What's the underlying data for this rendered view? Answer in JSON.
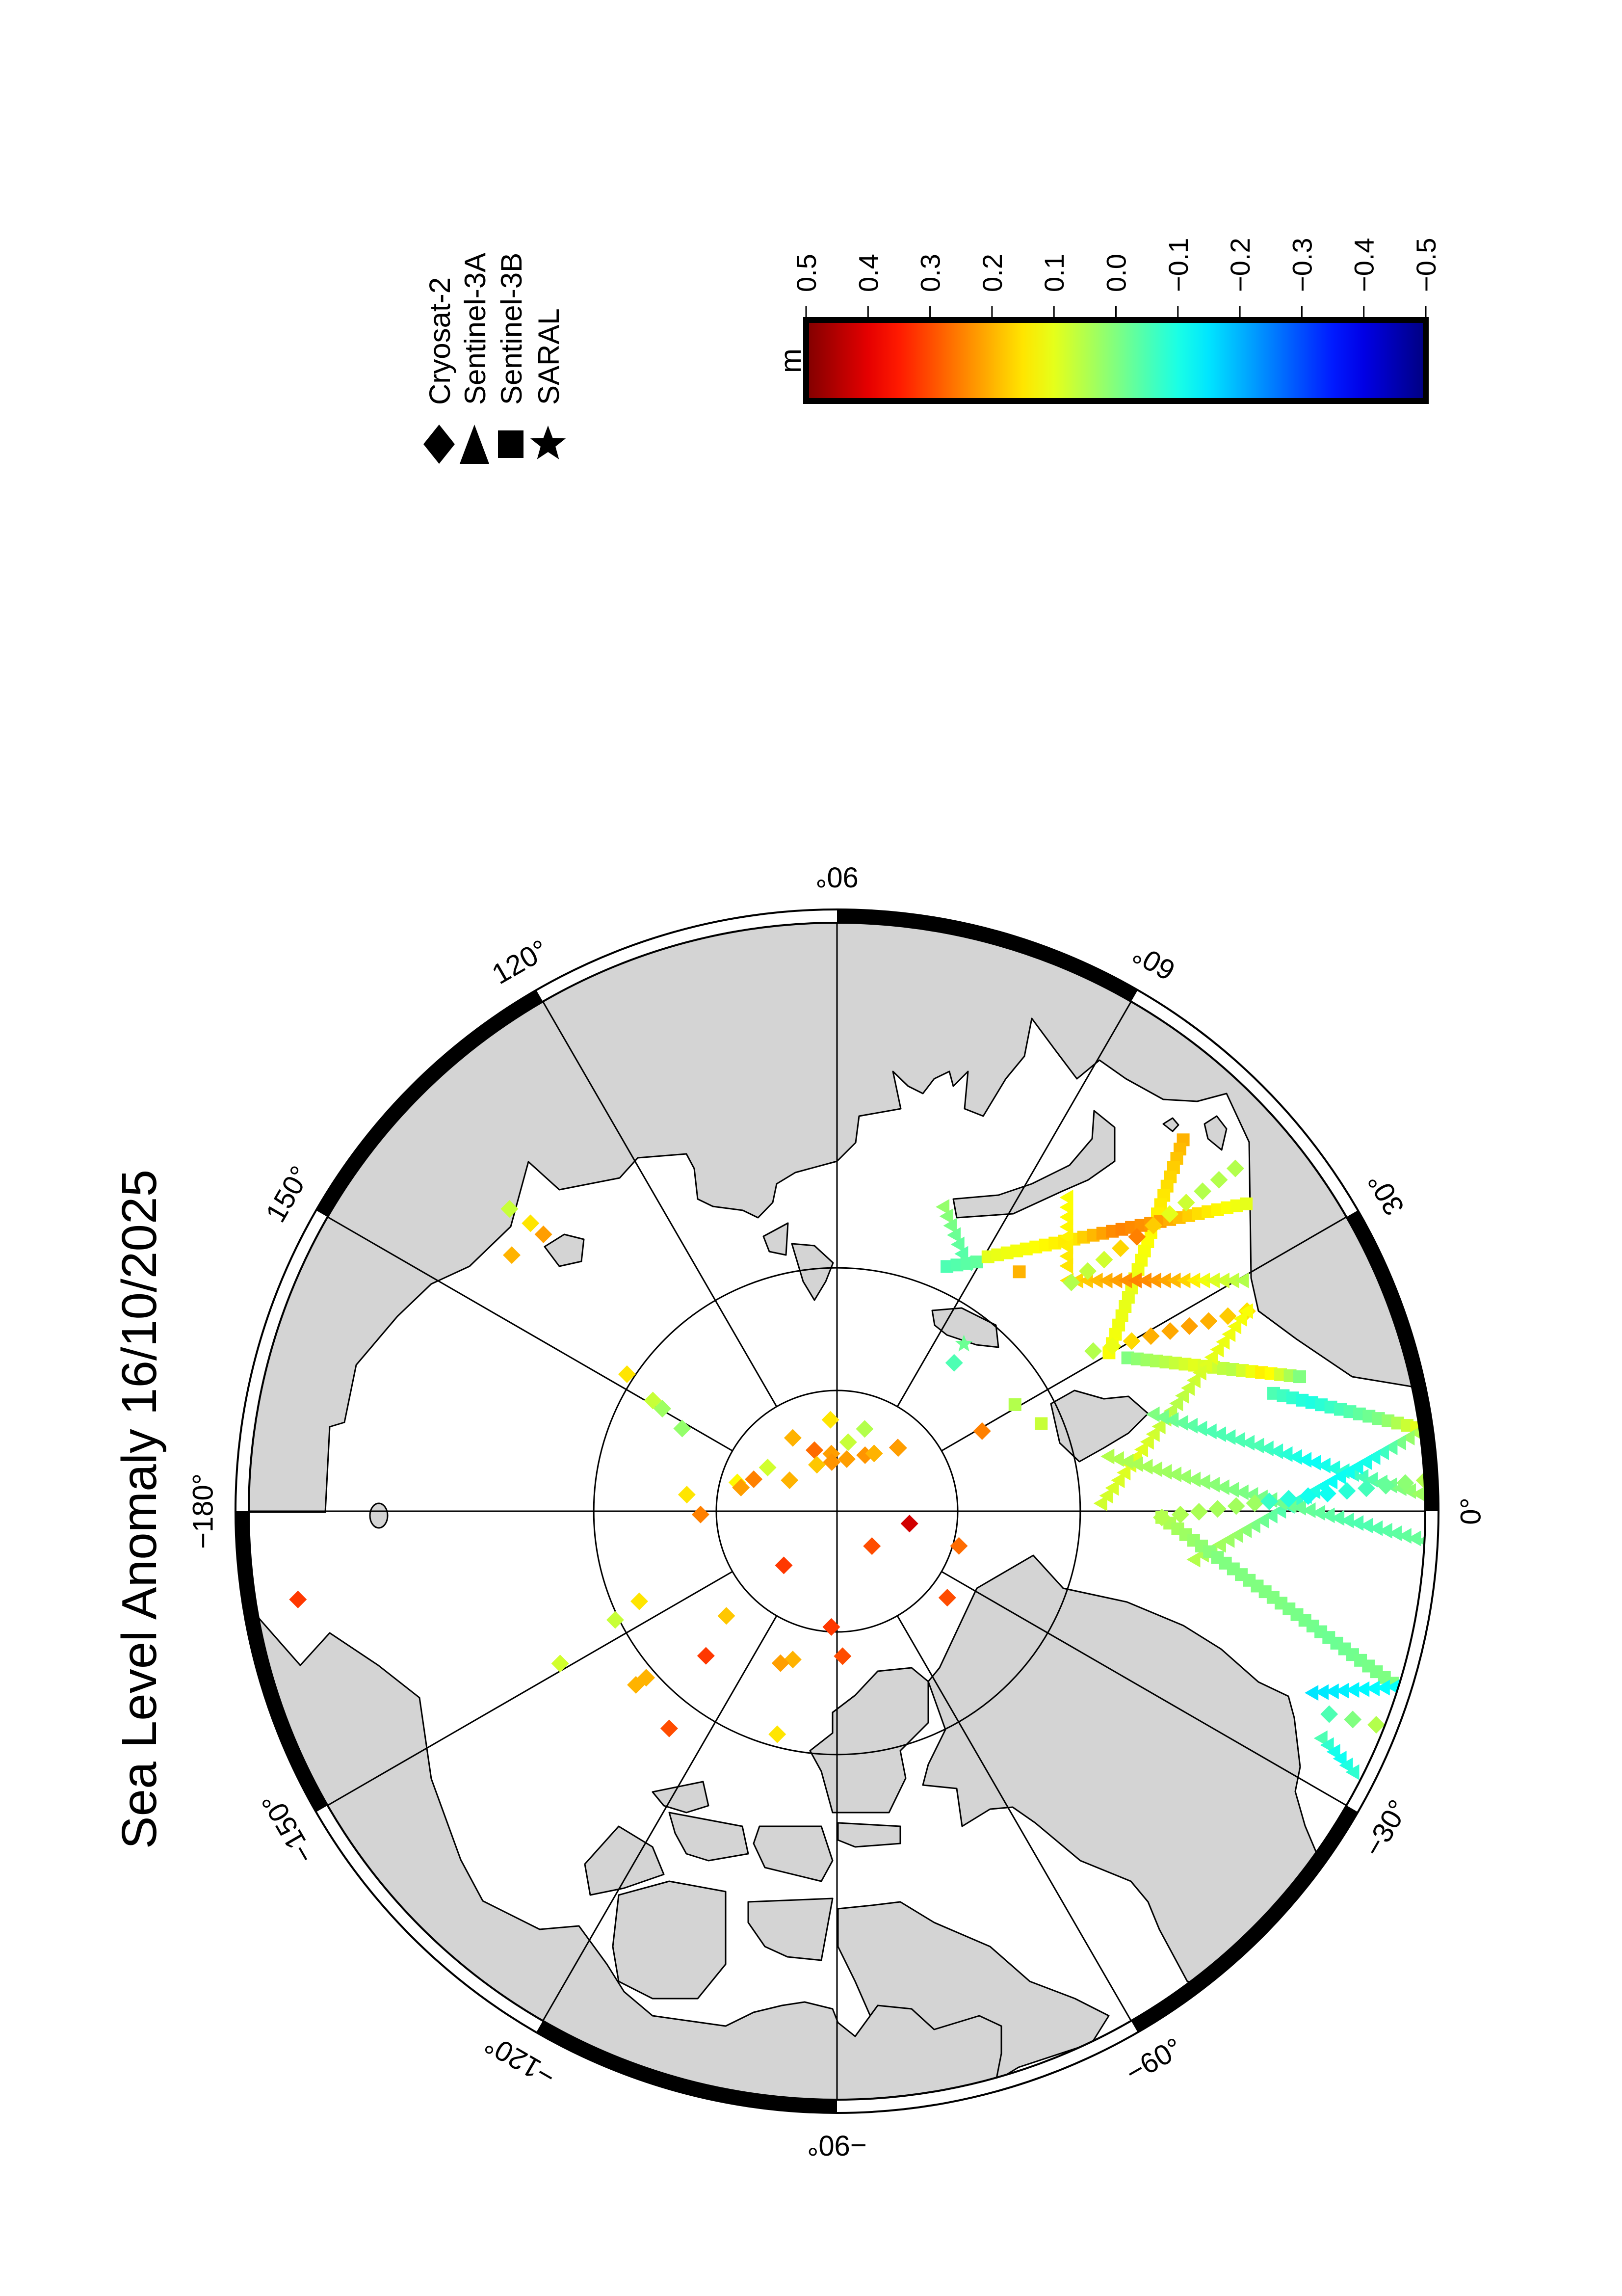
{
  "chart_data": {
    "type": "scatter",
    "projection": "north polar stereographic",
    "title": "Sea Level Anomaly 16/10/2025",
    "graticule": {
      "meridian_step_deg": 30,
      "parallels_deg": [
        70,
        80
      ],
      "lon_labels": [
        {
          "lon": 0,
          "text": "0°"
        },
        {
          "lon": 30,
          "text": "30°"
        },
        {
          "lon": 60,
          "text": "60°"
        },
        {
          "lon": 90,
          "text": "90°"
        },
        {
          "lon": 120,
          "text": "120°"
        },
        {
          "lon": 150,
          "text": "150°"
        },
        {
          "lon": 180,
          "text": "−180°"
        },
        {
          "lon": -150,
          "text": "−150°"
        },
        {
          "lon": -120,
          "text": "−120°"
        },
        {
          "lon": -90,
          "text": "−90°"
        },
        {
          "lon": -60,
          "text": "−60°"
        },
        {
          "lon": -30,
          "text": "−30°"
        }
      ]
    },
    "colorbar": {
      "label": "m",
      "colormap": "jet",
      "range": [
        -0.5,
        0.5
      ],
      "ticks": [
        {
          "value": 0.5,
          "text": "0.5"
        },
        {
          "value": 0.4,
          "text": "0.4"
        },
        {
          "value": 0.3,
          "text": "0.3"
        },
        {
          "value": 0.2,
          "text": "0.2"
        },
        {
          "value": 0.1,
          "text": "0.1"
        },
        {
          "value": 0.0,
          "text": "0.0"
        },
        {
          "value": -0.1,
          "text": "−0.1"
        },
        {
          "value": -0.2,
          "text": "−0.2"
        },
        {
          "value": -0.3,
          "text": "−0.3"
        },
        {
          "value": -0.4,
          "text": "−0.4"
        },
        {
          "value": -0.5,
          "text": "−0.5"
        }
      ]
    },
    "legend": [
      {
        "id": "C2",
        "name": "Cryosat-2",
        "marker": "diamond"
      },
      {
        "id": "S3A",
        "name": "Sentinel-3A",
        "marker": "triangle"
      },
      {
        "id": "S3B",
        "name": "Sentinel-3B",
        "marker": "square"
      },
      {
        "id": "SARAL",
        "name": "SARAL",
        "marker": "star"
      }
    ],
    "tracks": [
      {
        "mission": "S3B",
        "start": [
          47.0,
          49.6
        ],
        "end": [
          30.2,
          64.3
        ],
        "values": [
          0.2,
          0.15,
          0.12,
          0.1,
          0.12
        ]
      },
      {
        "mission": "S3A",
        "start": [
          70.7,
          63.7
        ],
        "end": [
          62.5,
          67.1
        ],
        "values": [
          0.02,
          -0.02,
          -0.05
        ]
      },
      {
        "mission": "S3B",
        "start": [
          65.8,
          68.0
        ],
        "end": [
          60.7,
          66.6
        ],
        "values": [
          -0.05,
          -0.03
        ]
      },
      {
        "mission": "S3B",
        "start": [
          59.3,
          65.8
        ],
        "end": [
          36.9,
          49.3
        ],
        "values": [
          0.1,
          0.12,
          0.15,
          0.25,
          0.22,
          0.15,
          0.1
        ]
      },
      {
        "mission": "S3A",
        "start": [
          53.7,
          58.5
        ],
        "end": [
          46.8,
          62.6
        ],
        "values": [
          0.12,
          0.15
        ]
      },
      {
        "mission": "S3A",
        "start": [
          45.0,
          63.4
        ],
        "end": [
          29.6,
          52.6
        ],
        "values": [
          0.15,
          0.2,
          0.25,
          0.2,
          0.1,
          0.05
        ]
      },
      {
        "mission": "C2",
        "start": [
          44.3,
          63.3
        ],
        "end": [
          40.7,
          48.3
        ],
        "values": [
          0.05,
          0.08,
          0.25,
          0.1,
          0.05,
          0.05
        ]
      },
      {
        "mission": "C2",
        "start": [
          32.0,
          65.3
        ],
        "end": [
          26.0,
          53.4
        ],
        "values": [
          0.05,
          0.2,
          0.22,
          0.15
        ]
      },
      {
        "mission": "S3B",
        "start": [
          27.8,
          63.2
        ],
        "end": [
          16.2,
          51.5
        ],
        "values": [
          0.0,
          0.05,
          0.1,
          0.05,
          0.15,
          0.0
        ]
      },
      {
        "mission": "S3B",
        "start": [
          15.1,
          53.7
        ],
        "end": [
          8.2,
          44.0
        ],
        "values": [
          -0.05,
          -0.1,
          -0.05,
          0.0,
          0.1
        ]
      },
      {
        "mission": "S3A",
        "start": [
          26.0,
          53.4
        ],
        "end": [
          1.7,
          68.3
        ],
        "values": [
          0.12,
          0.1,
          0.05,
          0.1,
          0.08
        ]
      },
      {
        "mission": "S3A",
        "start": [
          17.0,
          63.0
        ],
        "end": [
          1.7,
          44.2
        ],
        "values": [
          0.0,
          -0.05,
          -0.05,
          -0.12,
          -0.05,
          0.03
        ]
      },
      {
        "mission": "S3A",
        "start": [
          7.7,
          44.0
        ],
        "end": [
          -7.7,
          60.7
        ],
        "values": [
          0.05,
          -0.1,
          -0.12,
          -0.05,
          0.02,
          0.05
        ]
      },
      {
        "mission": "S3A",
        "start": [
          11.4,
          67.3
        ],
        "end": [
          -2.9,
          43.8
        ],
        "values": [
          0.05,
          0.03,
          0.0,
          -0.02,
          -0.05,
          -0.02
        ]
      },
      {
        "mission": "S3B",
        "start": [
          -1.1,
          63.5
        ],
        "end": [
          -17.2,
          44.3
        ],
        "values": [
          0.05,
          0.0,
          0.0,
          -0.02,
          0.0
        ]
      },
      {
        "mission": "C2",
        "start": [
          -1.1,
          63.5
        ],
        "end": [
          1.1,
          56.3
        ],
        "values": [
          0.05,
          0.03
        ]
      },
      {
        "mission": "C2",
        "start": [
          1.3,
          55.2
        ],
        "end": [
          3.0,
          43.8
        ],
        "values": [
          -0.07,
          -0.12,
          -0.05,
          0.05
        ]
      },
      {
        "mission": "S3A",
        "start": [
          -20.9,
          49.5
        ],
        "end": [
          -17.5,
          44.1
        ],
        "values": [
          -0.15,
          -0.12
        ]
      },
      {
        "mission": "C2",
        "start": [
          -22.4,
          47.8
        ],
        "end": [
          -21.6,
          44.4
        ],
        "values": [
          -0.05,
          0.0,
          0.05
        ]
      },
      {
        "mission": "S3A",
        "start": [
          -25.1,
          47.6
        ],
        "end": [
          -26.8,
          44.5
        ],
        "values": [
          -0.05,
          -0.12,
          -0.08
        ]
      }
    ],
    "points": [
      {
        "mission": "C2",
        "lon": 51.7,
        "lat": 74.4,
        "value": -0.05
      },
      {
        "mission": "SARAL",
        "lon": 52.8,
        "lat": 72.7,
        "value": -0.02
      },
      {
        "mission": "S3B",
        "lon": 30.9,
        "lat": 72.9,
        "value": 0.05
      },
      {
        "mission": "S3B",
        "lon": 23.2,
        "lat": 71.7,
        "value": 0.07
      },
      {
        "mission": "C2",
        "lon": 28.9,
        "lat": 76.3,
        "value": 0.25
      },
      {
        "mission": "C2",
        "lon": 46.3,
        "lat": 82.7,
        "value": 0.25
      },
      {
        "mission": "C2",
        "lon": -9.7,
        "lat": 83.9,
        "value": 0.42
      },
      {
        "mission": "C2",
        "lon": -15.9,
        "lat": 79.5,
        "value": 0.27
      },
      {
        "mission": "C2",
        "lon": -38.1,
        "lat": 78.4,
        "value": 0.3
      },
      {
        "mission": "S3B",
        "lon": 52.7,
        "lat": 65.4,
        "value": 0.2
      },
      {
        "mission": "C2",
        "lon": 94.1,
        "lat": 82.4,
        "value": 0.15
      },
      {
        "mission": "C2",
        "lon": 71.4,
        "lat": 82.8,
        "value": 0.05
      },
      {
        "mission": "C2",
        "lon": 80.8,
        "lat": 84.2,
        "value": 0.07
      },
      {
        "mission": "C2",
        "lon": 121.1,
        "lat": 82.9,
        "value": 0.2
      },
      {
        "mission": "C2",
        "lon": 110.3,
        "lat": 84.6,
        "value": 0.27
      },
      {
        "mission": "C2",
        "lon": 95.6,
        "lat": 85.2,
        "value": 0.22
      },
      {
        "mission": "C2",
        "lon": 96.1,
        "lat": 85.9,
        "value": 0.23
      },
      {
        "mission": "C2",
        "lon": 113.4,
        "lat": 85.8,
        "value": 0.18
      },
      {
        "mission": "C2",
        "lon": 79.4,
        "lat": 85.6,
        "value": 0.22
      },
      {
        "mission": "C2",
        "lon": 63.4,
        "lat": 84.8,
        "value": 0.23
      },
      {
        "mission": "C2",
        "lon": 57.3,
        "lat": 84.3,
        "value": 0.2
      },
      {
        "mission": "C2",
        "lon": 45.9,
        "lat": 82.7,
        "value": 0.22
      },
      {
        "mission": "C2",
        "lon": 147.8,
        "lat": 83.2,
        "value": 0.08
      },
      {
        "mission": "C2",
        "lon": 163.9,
        "lat": 81.4,
        "value": 0.13
      },
      {
        "mission": "C2",
        "lon": 159.0,
        "lat": 82.6,
        "value": 0.25
      },
      {
        "mission": "C2",
        "lon": 166.2,
        "lat": 81.8,
        "value": 0.22
      },
      {
        "mission": "C2",
        "lon": 146.9,
        "lat": 85.3,
        "value": 0.2
      },
      {
        "mission": "C2",
        "lon": -45.0,
        "lat": 85.9,
        "value": 0.3
      },
      {
        "mission": "C2",
        "lon": -134.5,
        "lat": 83.7,
        "value": 0.32
      },
      {
        "mission": "C2",
        "lon": -178.6,
        "lat": 78.7,
        "value": 0.25
      },
      {
        "mission": "C2",
        "lon": 173.7,
        "lat": 77.5,
        "value": 0.15
      },
      {
        "mission": "C2",
        "lon": -136.6,
        "lat": 77.4,
        "value": 0.18
      },
      {
        "mission": "C2",
        "lon": -92.8,
        "lat": 80.4,
        "value": 0.32
      },
      {
        "mission": "C2",
        "lon": -87.8,
        "lat": 78.0,
        "value": 0.3
      },
      {
        "mission": "C2",
        "lon": -132.2,
        "lat": 73.9,
        "value": 0.32
      },
      {
        "mission": "C2",
        "lon": -106.6,
        "lat": 77.2,
        "value": 0.2
      },
      {
        "mission": "C2",
        "lon": -110.4,
        "lat": 76.6,
        "value": 0.22
      },
      {
        "mission": "C2",
        "lon": 146.9,
        "lat": 69.4,
        "value": 0.15
      },
      {
        "mission": "C2",
        "lon": 149.0,
        "lat": 72.3,
        "value": 0.07
      },
      {
        "mission": "C2",
        "lon": 149.6,
        "lat": 73.3,
        "value": 0.03
      },
      {
        "mission": "C2",
        "lon": 151.9,
        "lat": 75.5,
        "value": 0.02
      },
      {
        "mission": "C2",
        "lon": -155.5,
        "lat": 72.1,
        "value": 0.15
      },
      {
        "mission": "C2",
        "lon": -153.9,
        "lat": 69.7,
        "value": 0.07
      },
      {
        "mission": "C2",
        "lon": -151.2,
        "lat": 64.2,
        "value": 0.08
      },
      {
        "mission": "C2",
        "lon": -139.2,
        "lat": 68.2,
        "value": 0.2
      },
      {
        "mission": "C2",
        "lon": -138.9,
        "lat": 69.2,
        "value": 0.2
      },
      {
        "mission": "C2",
        "lon": -127.7,
        "lat": 67.5,
        "value": 0.3
      },
      {
        "mission": "C2",
        "lon": -105.0,
        "lat": 71.0,
        "value": 0.15
      },
      {
        "mission": "C2",
        "lon": -170.7,
        "lat": 46.8,
        "value": 0.32
      },
      {
        "mission": "C2",
        "lon": 137.3,
        "lat": 54.2,
        "value": 0.07
      },
      {
        "mission": "C2",
        "lon": 136.8,
        "lat": 56.1,
        "value": 0.15
      },
      {
        "mission": "C2",
        "lon": 136.7,
        "lat": 57.4,
        "value": 0.22
      },
      {
        "mission": "C2",
        "lon": 141.8,
        "lat": 56.6,
        "value": 0.2
      }
    ]
  }
}
